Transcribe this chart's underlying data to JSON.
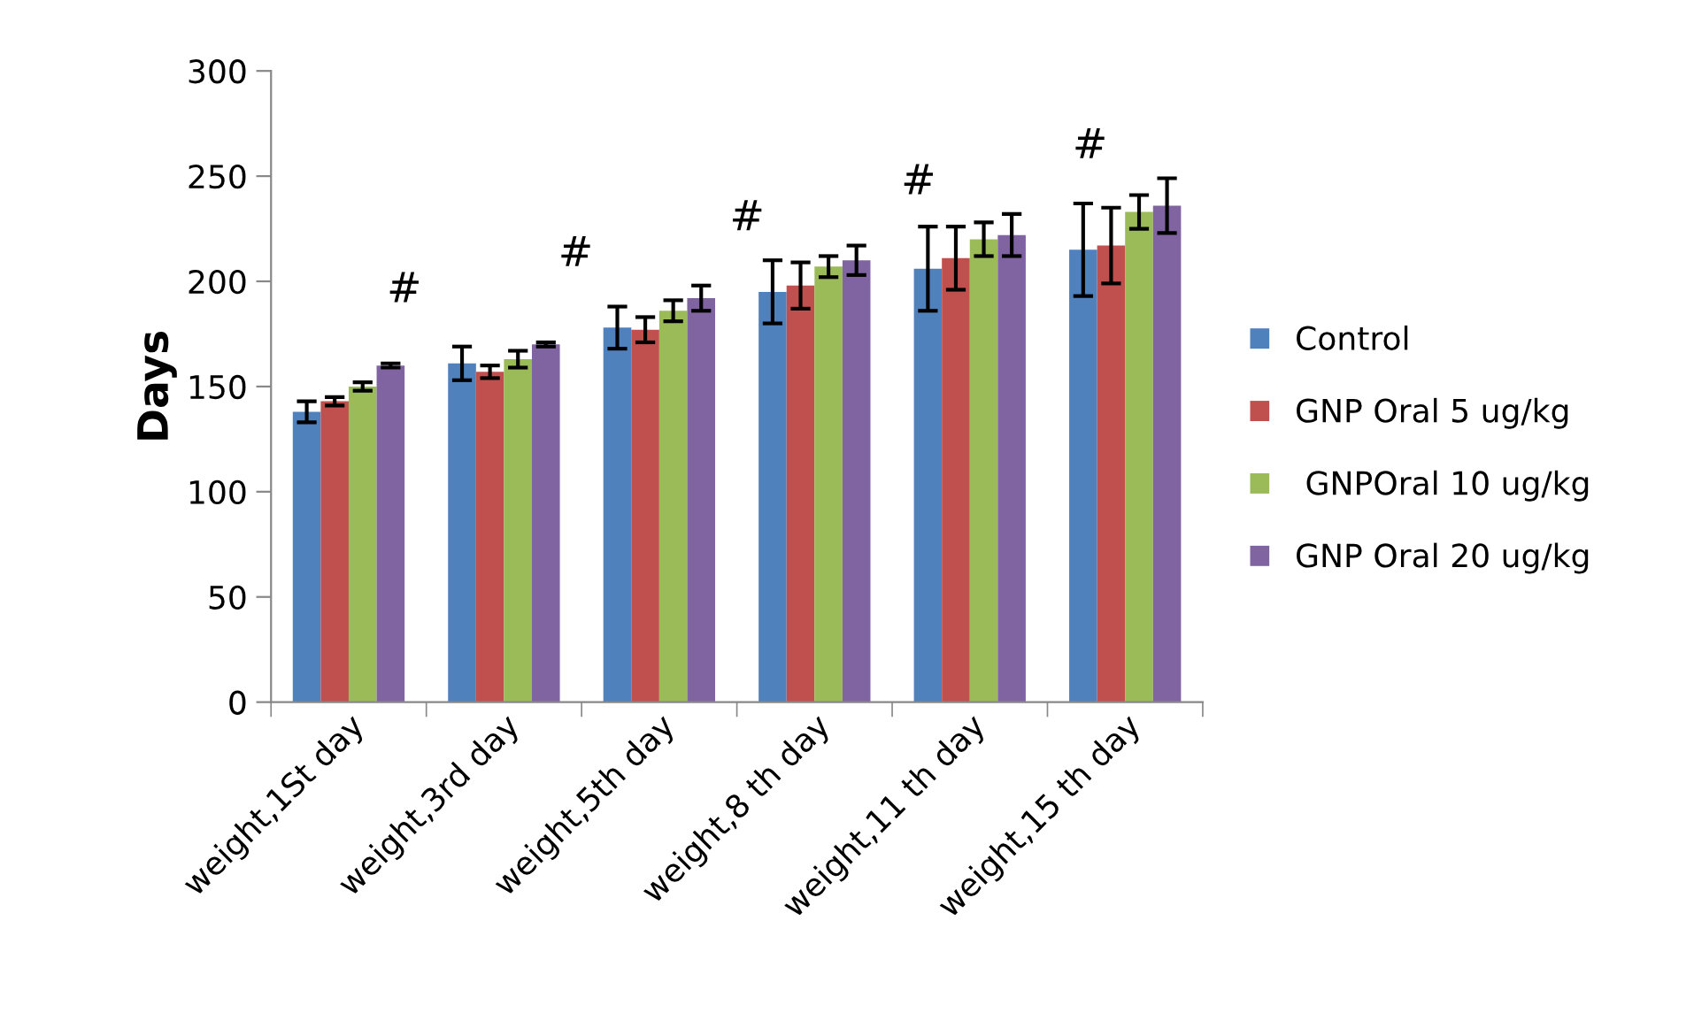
{
  "chart_data": {
    "type": "bar",
    "ylabel": "Days",
    "categories": [
      "weight,1St day",
      "weight,3rd day",
      "weight,5th day",
      "weight,8 th day",
      "weight,11 th day",
      "weight,15 th day"
    ],
    "series": [
      {
        "name": "Control",
        "color": "#4f81bd",
        "values": [
          138,
          161,
          178,
          195,
          206,
          215
        ],
        "errors": [
          5,
          8,
          10,
          15,
          20,
          22
        ]
      },
      {
        "name": "GNP Oral 5 ug/kg",
        "color": "#c0504d",
        "values": [
          143,
          157,
          177,
          198,
          211,
          217
        ],
        "errors": [
          2,
          3,
          6,
          11,
          15,
          18
        ]
      },
      {
        "name": " GNPOral 10 ug/kg",
        "color": "#9bbb59",
        "values": [
          150,
          163,
          186,
          207,
          220,
          233
        ],
        "errors": [
          2,
          4,
          5,
          5,
          8,
          8
        ]
      },
      {
        "name": "GNP Oral 20 ug/kg",
        "color": "#8064a2",
        "values": [
          160,
          170,
          192,
          210,
          222,
          236
        ],
        "errors": [
          1,
          1,
          6,
          7,
          10,
          13
        ]
      }
    ],
    "annotations": [
      "#",
      "#",
      "#",
      "#",
      "#"
    ],
    "ylim": [
      0,
      300
    ],
    "yticks": [
      0,
      50,
      100,
      150,
      200,
      250,
      300
    ],
    "grid": false,
    "legend": "right"
  }
}
